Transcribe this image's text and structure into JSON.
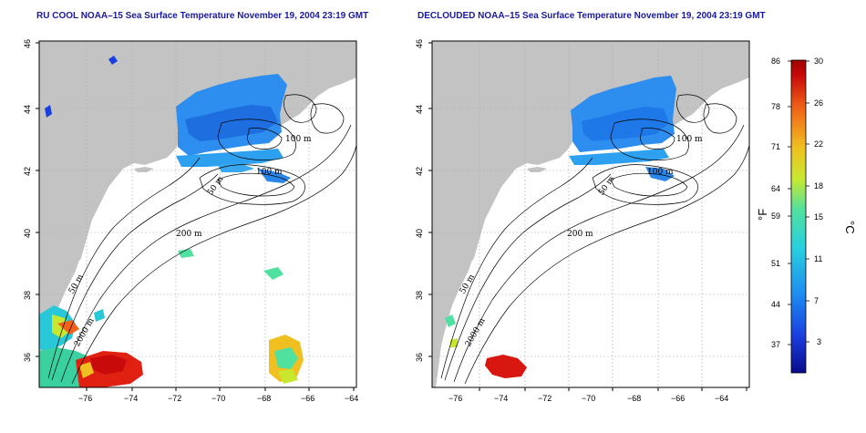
{
  "panels": [
    {
      "title": "RU COOL NOAA–15 Sea Surface Temperature November 19, 2004 23:19 GMT",
      "contour_labels": [
        "100 m",
        "100 m",
        "50 m",
        "200 m",
        "50 m",
        "2000 m"
      ]
    },
    {
      "title": "DECLOUDED NOAA–15 Sea Surface Temperature November 19, 2004 23:19 GMT",
      "contour_labels": [
        "100 m",
        "100 m",
        "50 m",
        "200 m",
        "50 m",
        "2000 m"
      ]
    }
  ],
  "axes": {
    "x_ticks": [
      "−76",
      "−74",
      "−72",
      "−70",
      "−68",
      "−66",
      "−64"
    ],
    "y_ticks": [
      "46",
      "44",
      "42",
      "40",
      "38",
      "36"
    ]
  },
  "colorbar": {
    "fahrenheit_unit": "°F",
    "celsius_unit": "°C",
    "fahrenheit_ticks": [
      "86",
      "78",
      "71",
      "64",
      "59",
      "51",
      "44",
      "37"
    ],
    "celsius_ticks": [
      "30",
      "26",
      "22",
      "18",
      "15",
      "11",
      "7",
      "3"
    ],
    "colors": [
      "#0a0a8c",
      "#1a3fe0",
      "#1e8cf0",
      "#28d0e0",
      "#50e0a0",
      "#c8e830",
      "#f0c020",
      "#f06018",
      "#c80a0a",
      "#a00000"
    ]
  }
}
